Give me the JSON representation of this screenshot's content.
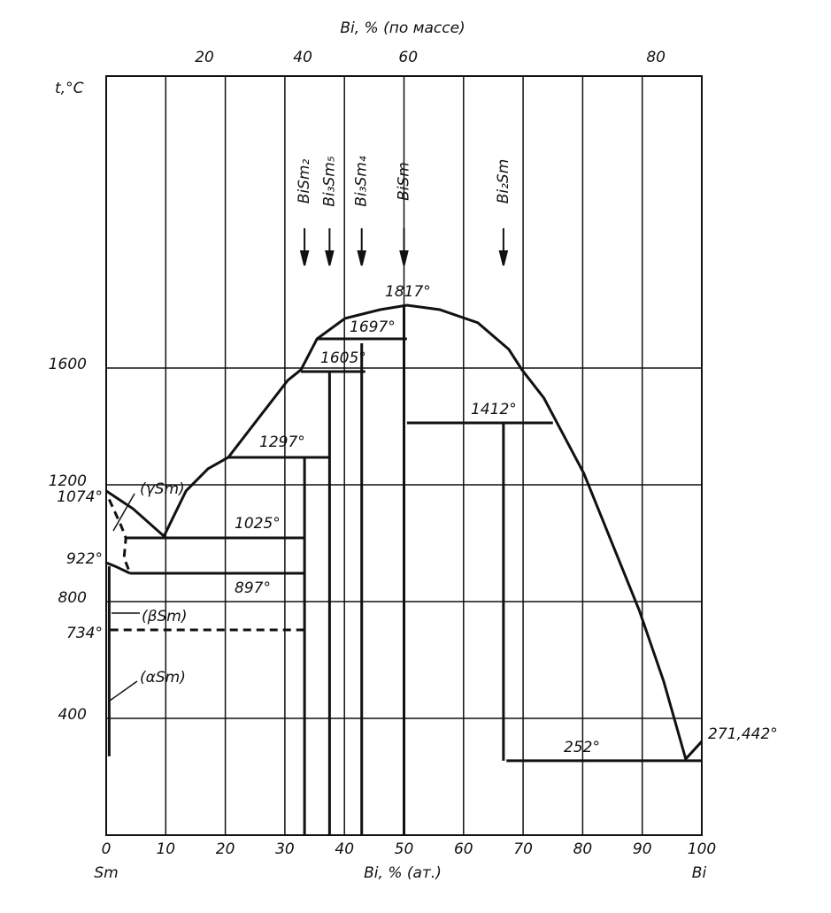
{
  "chart_data": {
    "type": "phase-diagram",
    "top_axis_title": "Bi, % (по массе)",
    "x_label": "Bi, % (ат.)",
    "y_label": "t,°C",
    "x_start_label": "Sm",
    "x_end_label": "Bi",
    "xlim": [
      0,
      100
    ],
    "xticks": [
      0,
      10,
      20,
      30,
      40,
      50,
      60,
      70,
      80,
      90,
      100
    ],
    "x2ticks": [
      {
        "value": 16.5,
        "label": "20"
      },
      {
        "value": 33,
        "label": "40"
      },
      {
        "value": 50.7,
        "label": "60"
      },
      {
        "value": 92.3,
        "label": "80"
      }
    ],
    "ylim": [
      0,
      2600
    ],
    "yticks": [
      400,
      800,
      1200,
      1600
    ],
    "grid": true,
    "color": "#111111",
    "curves": [
      {
        "x": [
          0,
          4.5,
          9.7,
          13.4,
          17.1,
          20.5,
          25.3,
          30.5,
          32.7,
          35.4,
          40.1,
          46,
          50.5,
          56,
          62.4,
          67.6,
          69.8,
          73.5,
          80.2,
          84.7,
          89.5,
          93.6,
          97.3,
          100
        ],
        "y": [
          1179,
          1118,
          1024,
          1179,
          1255,
          1294,
          1421,
          1558,
          1594,
          1700,
          1770,
          1800,
          1815,
          1800,
          1755,
          1664,
          1594,
          1497,
          1239,
          1012,
          770,
          527,
          261,
          321
        ],
        "dashed": false
      },
      {
        "x": [
          20.5,
          37.6
        ],
        "y": [
          1294,
          1294
        ],
        "dashed": false
      },
      {
        "x": [
          3.3,
          33.3
        ],
        "y": [
          1018,
          1018
        ],
        "dashed": false
      },
      {
        "x": [
          4,
          33.3
        ],
        "y": [
          897,
          897
        ],
        "dashed": false
      },
      {
        "x": [
          0.7,
          33.3
        ],
        "y": [
          703,
          703
        ],
        "dashed": true
      },
      {
        "x": [
          32.7,
          43.5
        ],
        "y": [
          1588,
          1588
        ],
        "dashed": false
      },
      {
        "x": [
          35.4,
          50.5
        ],
        "y": [
          1700,
          1700
        ],
        "dashed": false
      },
      {
        "x": [
          50.5,
          75
        ],
        "y": [
          1412,
          1412
        ],
        "dashed": false
      },
      {
        "x": [
          67.2,
          100
        ],
        "y": [
          255,
          255
        ],
        "dashed": false
      },
      {
        "x": [
          33.3,
          33.3
        ],
        "y": [
          0,
          1294
        ],
        "dashed": false
      },
      {
        "x": [
          37.5,
          37.5
        ],
        "y": [
          0,
          1588
        ],
        "dashed": false
      },
      {
        "x": [
          42.9,
          42.9
        ],
        "y": [
          0,
          1685
        ],
        "dashed": false
      },
      {
        "x": [
          50,
          50
        ],
        "y": [
          0,
          1815
        ],
        "dashed": false
      },
      {
        "x": [
          66.7,
          66.7
        ],
        "y": [
          255,
          1412
        ],
        "dashed": false
      },
      {
        "x": [
          0.5,
          0.5
        ],
        "y": [
          921,
          270
        ],
        "dashed": false
      },
      {
        "x": [
          0,
          1.5,
          4
        ],
        "y": [
          933,
          921,
          897
        ],
        "dashed": false
      },
      {
        "x": [
          0.5,
          2.5,
          3.3,
          3,
          4
        ],
        "y": [
          1150,
          1060,
          1018,
          950,
          897
        ],
        "dashed": true
      }
    ],
    "compounds": [
      {
        "label": "BiSm₂",
        "x": 33.3
      },
      {
        "label": "Bi₃Sm₅",
        "x": 37.5
      },
      {
        "label": "Bi₃Sm₄",
        "x": 42.9
      },
      {
        "label": "BiSm",
        "x": 50
      },
      {
        "label": "Bi₂Sm",
        "x": 66.7
      }
    ],
    "annotations": [
      "1817°",
      "1697°",
      "1605°",
      "1297°",
      "1412°",
      "1025°",
      "897°",
      "252°",
      "271,442°",
      "1074°",
      "922°",
      "734°"
    ],
    "phases": [
      "(γSm)",
      "(βSm)",
      "(αSm)"
    ]
  }
}
